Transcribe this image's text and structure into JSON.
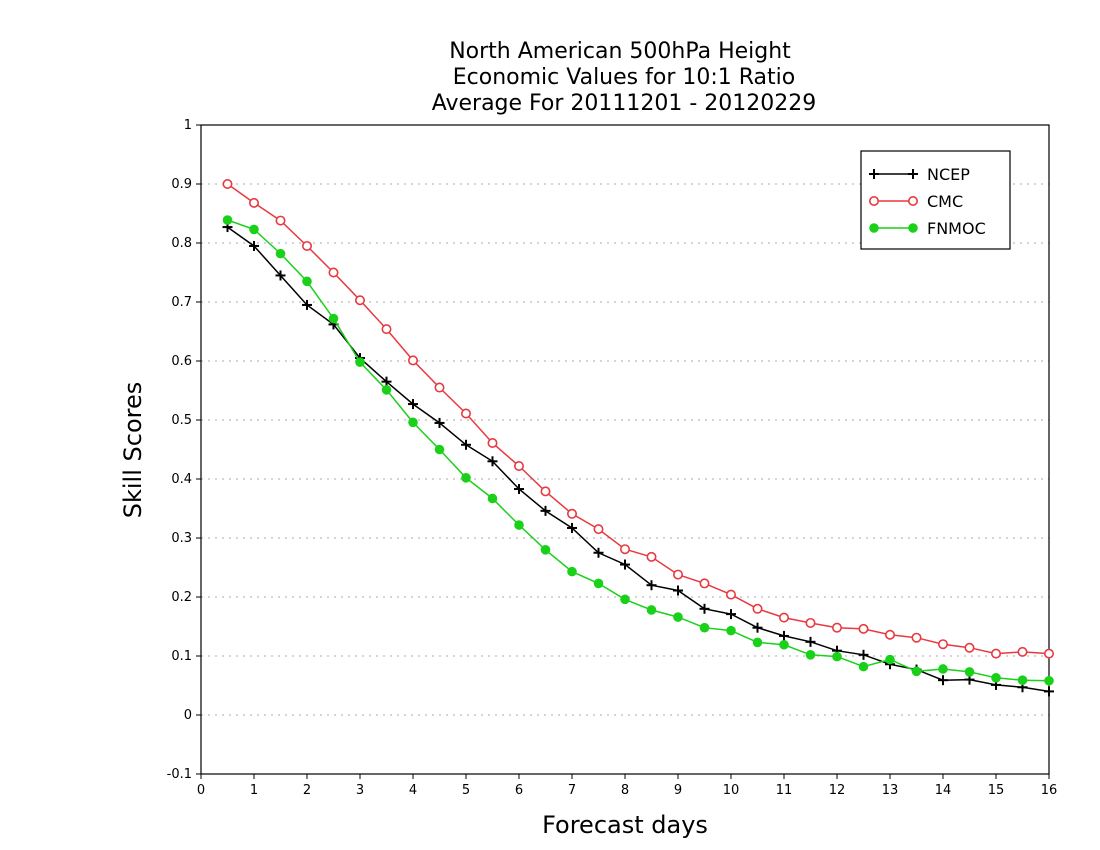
{
  "chart_data": {
    "type": "line",
    "title": [
      "North American 500hPa Height",
      "Economic Values for 10:1 Ratio",
      "Average For 20111201 - 20120229"
    ],
    "xlabel": "Forecast days",
    "ylabel": "Skill Scores",
    "xlim": [
      0,
      16
    ],
    "ylim": [
      -0.1,
      1
    ],
    "x_ticks": [
      0,
      1,
      2,
      3,
      4,
      5,
      6,
      7,
      8,
      9,
      10,
      11,
      12,
      13,
      14,
      15,
      16
    ],
    "y_ticks": [
      -0.1,
      0,
      0.1,
      0.2,
      0.3,
      0.4,
      0.5,
      0.6,
      0.7,
      0.8,
      0.9,
      1
    ],
    "y_tick_labels": [
      "-0.1",
      "0",
      "0.1",
      "0.2",
      "0.3",
      "0.4",
      "0.5",
      "0.6",
      "0.7",
      "0.8",
      "0.9",
      "1"
    ],
    "grid": "horizontal dotted",
    "legend_position": "top-right",
    "x": [
      0.5,
      1,
      1.5,
      2,
      2.5,
      3,
      3.5,
      4,
      4.5,
      5,
      5.5,
      6,
      6.5,
      7,
      7.5,
      8,
      8.5,
      9,
      9.5,
      10,
      10.5,
      11,
      11.5,
      12,
      12.5,
      13,
      13.5,
      14,
      14.5,
      15,
      15.5,
      16
    ],
    "series": [
      {
        "name": "NCEP",
        "color": "#000000",
        "marker": "plus",
        "values": [
          0.827,
          0.795,
          0.745,
          0.695,
          0.662,
          0.605,
          0.565,
          0.527,
          0.495,
          0.458,
          0.43,
          0.383,
          0.346,
          0.317,
          0.275,
          0.255,
          0.22,
          0.211,
          0.18,
          0.171,
          0.148,
          0.134,
          0.124,
          0.109,
          0.102,
          0.086,
          0.077,
          0.059,
          0.06,
          0.051,
          0.047,
          0.04
        ]
      },
      {
        "name": "CMC",
        "color": "#e8393f",
        "marker": "open-circle",
        "values": [
          0.9,
          0.868,
          0.838,
          0.795,
          0.75,
          0.703,
          0.654,
          0.601,
          0.555,
          0.511,
          0.461,
          0.422,
          0.379,
          0.341,
          0.315,
          0.281,
          0.268,
          0.238,
          0.223,
          0.204,
          0.18,
          0.165,
          0.156,
          0.148,
          0.146,
          0.136,
          0.131,
          0.12,
          0.114,
          0.104,
          0.107,
          0.104
        ]
      },
      {
        "name": "FNMOC",
        "color": "#19d119",
        "marker": "filled-circle",
        "values": [
          0.839,
          0.823,
          0.782,
          0.735,
          0.672,
          0.598,
          0.551,
          0.496,
          0.45,
          0.402,
          0.367,
          0.322,
          0.28,
          0.243,
          0.223,
          0.196,
          0.178,
          0.166,
          0.148,
          0.143,
          0.123,
          0.119,
          0.102,
          0.099,
          0.082,
          0.094,
          0.074,
          0.078,
          0.073,
          0.063,
          0.059,
          0.058
        ]
      }
    ]
  }
}
